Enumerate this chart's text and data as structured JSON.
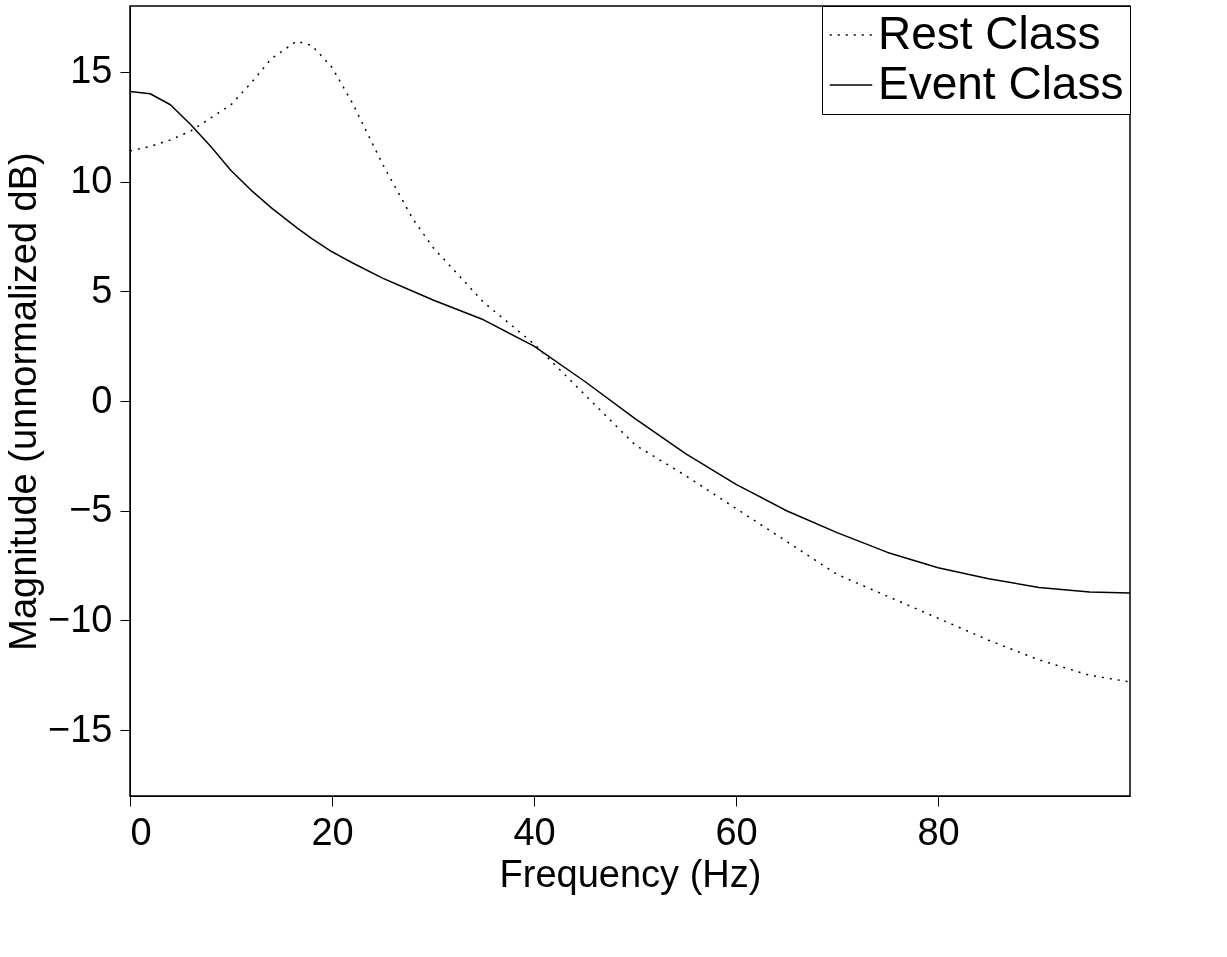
{
  "chart_data": {
    "type": "line",
    "xlabel": "Frequency (Hz)",
    "ylabel": "Magnitude (unnormalized dB)",
    "xlim": [
      0,
      99
    ],
    "ylim": [
      -18,
      18
    ],
    "xticks": [
      0,
      20,
      40,
      60,
      80
    ],
    "yticks": [
      -15,
      -10,
      -5,
      0,
      5,
      10,
      15
    ],
    "grid": false,
    "legend": "top right",
    "marker": "none",
    "x": [
      0,
      2,
      4,
      6,
      8,
      10,
      12,
      14,
      16.5,
      18,
      20,
      22,
      25,
      28,
      30,
      35,
      40,
      45,
      50,
      55,
      60,
      65,
      70,
      75,
      80,
      85,
      90,
      95,
      99
    ],
    "series": [
      {
        "name": "Rest Class",
        "color": "#000000",
        "line_style": "dotted",
        "values": [
          11.4,
          11.6,
          11.9,
          12.3,
          12.9,
          13.5,
          14.5,
          15.6,
          16.4,
          16.2,
          15.2,
          13.6,
          10.8,
          8.3,
          7.0,
          4.5,
          2.6,
          0.3,
          -2.0,
          -3.4,
          -4.9,
          -6.4,
          -7.9,
          -8.9,
          -9.9,
          -10.9,
          -11.8,
          -12.5,
          -12.8
        ]
      },
      {
        "name": "Event Class",
        "color": "#000000",
        "line_style": "solid",
        "values": [
          14.1,
          14.0,
          13.5,
          12.6,
          11.6,
          10.5,
          9.6,
          8.8,
          7.9,
          7.4,
          6.8,
          6.3,
          5.6,
          5.0,
          4.6,
          3.7,
          2.5,
          0.9,
          -0.8,
          -2.4,
          -3.8,
          -5.0,
          -6.0,
          -6.9,
          -7.6,
          -8.1,
          -8.5,
          -8.7,
          -8.75
        ]
      }
    ]
  }
}
